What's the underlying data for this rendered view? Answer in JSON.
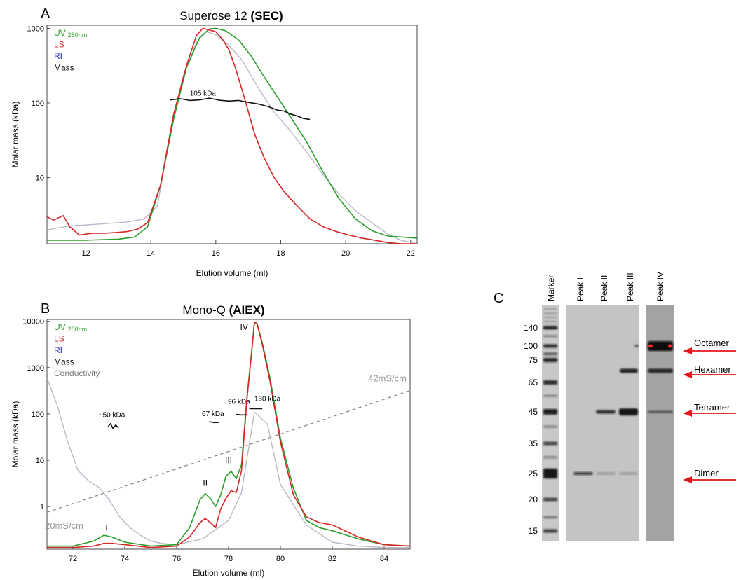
{
  "panels": {
    "a": {
      "letter": "A"
    },
    "b": {
      "letter": "B"
    },
    "c": {
      "letter": "C"
    }
  },
  "colors": {
    "uv": "#2ca02c",
    "ls": "#d62728",
    "ri": "#b9b9cc",
    "mass": "#111111",
    "conductivity": "#b9b9c8",
    "gradient": "#888888",
    "arrow": "#e8141a"
  },
  "chart_data": [
    {
      "id": "sec",
      "type": "line",
      "title_plain": "Superose 12",
      "title_bold": "(SEC)",
      "xlabel": "Elution volume (ml)",
      "ylabel": "Molar mass (kDa)",
      "xlim": [
        10.8,
        22.2
      ],
      "ylim": [
        1.3,
        1100
      ],
      "yscale": "log",
      "xticks": [
        "12",
        "14",
        "16",
        "18",
        "20",
        "22"
      ],
      "yticks": [
        "10",
        "100",
        "1000"
      ],
      "legend": [
        {
          "name": "UV",
          "sub": "280nm",
          "series": "uv"
        },
        {
          "name": "LS",
          "series": "ls"
        },
        {
          "name": "RI",
          "series": "ri"
        },
        {
          "name": "Mass",
          "series": "mass"
        }
      ],
      "annotations": [
        {
          "text": "105 kDa",
          "x": 15.6,
          "y": 125
        }
      ],
      "series": [
        {
          "key": "ri",
          "x": [
            10.8,
            11.5,
            12.5,
            13.3,
            13.8,
            14.2,
            14.6,
            15.0,
            15.4,
            15.7,
            16.0,
            16.4,
            16.8,
            17.3,
            17.8,
            18.3,
            18.8,
            19.3,
            19.8,
            20.3,
            20.8,
            21.3,
            21.7,
            22.2
          ],
          "y": [
            2.0,
            2.25,
            2.4,
            2.55,
            2.8,
            4.2,
            40,
            230,
            650,
            900,
            820,
            590,
            380,
            160,
            75,
            42,
            22,
            11,
            6,
            3.6,
            2.5,
            1.75,
            1.45,
            1.3
          ]
        },
        {
          "key": "uv",
          "x": [
            10.8,
            12.0,
            13.0,
            13.5,
            13.9,
            14.3,
            14.7,
            15.1,
            15.5,
            15.8,
            16.0,
            16.3,
            16.7,
            17.1,
            17.5,
            17.9,
            18.3,
            18.8,
            19.3,
            19.8,
            20.3,
            20.8,
            21.3,
            22.2
          ],
          "y": [
            1.45,
            1.45,
            1.5,
            1.6,
            2.2,
            8,
            60,
            300,
            750,
            980,
            1000,
            930,
            700,
            420,
            220,
            120,
            65,
            30,
            12,
            5.2,
            2.8,
            1.95,
            1.65,
            1.55
          ]
        },
        {
          "key": "ls",
          "x": [
            10.8,
            11.0,
            11.3,
            11.5,
            11.8,
            12.2,
            12.6,
            13.0,
            13.3,
            13.6,
            13.9,
            14.3,
            14.7,
            15.1,
            15.4,
            15.6,
            15.8,
            16.0,
            16.2,
            16.4,
            16.6,
            16.9,
            17.2,
            17.5,
            17.8,
            18.1,
            18.5,
            18.9,
            19.3,
            19.7,
            20.1,
            20.5,
            20.9,
            21.3,
            21.7,
            22.2
          ],
          "y": [
            3.0,
            2.7,
            3.1,
            2.2,
            1.7,
            1.8,
            1.8,
            1.85,
            1.9,
            2.05,
            2.5,
            8,
            70,
            320,
            800,
            1000,
            950,
            900,
            720,
            520,
            300,
            110,
            38,
            18,
            10,
            6.5,
            4.2,
            2.8,
            2.2,
            1.9,
            1.7,
            1.55,
            1.45,
            1.35,
            1.3,
            1.3
          ]
        },
        {
          "key": "mass",
          "x": [
            14.6,
            14.9,
            15.2,
            15.5,
            15.8,
            16.1,
            16.4,
            16.7,
            17.0,
            17.3,
            17.6,
            17.9,
            18.1,
            18.3,
            18.5,
            18.7,
            18.9
          ],
          "y": [
            110,
            114,
            108,
            110,
            116,
            109,
            106,
            108,
            102,
            97,
            90,
            80,
            78,
            71,
            67,
            62,
            60
          ]
        }
      ]
    },
    {
      "id": "aiex",
      "type": "line",
      "title_plain": "Mono-Q",
      "title_bold": "(AIEX)",
      "xlabel": "Elution volume (ml)",
      "ylabel": "Molar mass (kDa)",
      "xlim": [
        71.0,
        85.0
      ],
      "ylim": [
        0.12,
        11000
      ],
      "yscale": "log",
      "xticks": [
        "72",
        "74",
        "76",
        "78",
        "80",
        "82",
        "84"
      ],
      "yticks": [
        "1",
        "10",
        "100",
        "1000",
        "10000"
      ],
      "legend": [
        {
          "name": "UV",
          "sub": "280nm",
          "series": "uv"
        },
        {
          "name": "LS",
          "series": "ls"
        },
        {
          "name": "RI",
          "series": "ri"
        },
        {
          "name": "Mass",
          "series": "mass"
        },
        {
          "name": "Conductivity",
          "series": "conductivity"
        }
      ],
      "annotations": [
        {
          "text": "~50 kDa",
          "x": 73.5,
          "y": 85
        },
        {
          "text": "67 kDa",
          "x": 77.4,
          "y": 90
        },
        {
          "text": "96 kDa",
          "x": 78.4,
          "y": 165
        },
        {
          "text": "130 kDa",
          "x": 79.5,
          "y": 190
        },
        {
          "text": "I",
          "x": 73.3,
          "y": 0.3
        },
        {
          "text": "II",
          "x": 77.1,
          "y": 2.8
        },
        {
          "text": "III",
          "x": 78.0,
          "y": 8.5
        },
        {
          "text": "IV",
          "x": 78.6,
          "y": 6500
        }
      ],
      "gradient": {
        "start_label": "20mS/cm",
        "end_label": "42mS/cm",
        "x": [
          71.0,
          85.0
        ],
        "y": [
          0.75,
          320
        ]
      },
      "series": [
        {
          "key": "conductivity",
          "x": [
            71.0,
            71.4,
            71.8,
            72.2,
            72.6,
            73.0,
            73.4,
            73.8,
            74.2,
            74.6,
            75.0,
            75.4,
            76.0,
            77.0,
            78.0,
            78.5,
            79.0,
            79.5,
            80.0,
            81.0,
            82.0,
            83.0,
            84.0,
            85.0
          ],
          "y": [
            600,
            150,
            25,
            6,
            3.6,
            2.6,
            1.4,
            0.6,
            0.35,
            0.24,
            0.18,
            0.16,
            0.15,
            0.2,
            0.5,
            2,
            110,
            60,
            3,
            0.4,
            0.17,
            0.14,
            0.13,
            0.13
          ]
        },
        {
          "key": "uv",
          "x": [
            71.0,
            72.0,
            72.8,
            73.2,
            73.5,
            74.0,
            75.0,
            76.0,
            76.5,
            76.9,
            77.1,
            77.3,
            77.5,
            77.7,
            77.9,
            78.1,
            78.3,
            78.5,
            78.7,
            78.9,
            79.0,
            79.1,
            79.3,
            79.6,
            80.0,
            80.5,
            81.0,
            81.5,
            82.0,
            83.0,
            84.0,
            85.0
          ],
          "y": [
            0.14,
            0.14,
            0.18,
            0.24,
            0.22,
            0.17,
            0.14,
            0.15,
            0.35,
            1.4,
            1.9,
            1.5,
            1.0,
            1.8,
            4.5,
            5.8,
            4.0,
            8,
            200,
            2500,
            9800,
            9000,
            3500,
            600,
            30,
            2.5,
            0.5,
            0.35,
            0.3,
            0.2,
            0.15,
            0.14
          ]
        },
        {
          "key": "ls",
          "x": [
            71.0,
            72.0,
            72.8,
            73.2,
            73.5,
            74.0,
            75.0,
            76.0,
            76.5,
            76.9,
            77.1,
            77.3,
            77.5,
            77.7,
            77.9,
            78.1,
            78.3,
            78.5,
            78.7,
            78.9,
            79.0,
            79.1,
            79.3,
            79.6,
            80.0,
            80.5,
            81.0,
            81.5,
            82.0,
            83.0,
            84.0,
            85.0
          ],
          "y": [
            0.13,
            0.13,
            0.14,
            0.16,
            0.16,
            0.15,
            0.13,
            0.14,
            0.22,
            0.45,
            0.55,
            0.45,
            0.35,
            0.9,
            1.5,
            2.2,
            2.0,
            6,
            180,
            2400,
            9600,
            8800,
            3200,
            500,
            25,
            1.8,
            0.6,
            0.45,
            0.4,
            0.22,
            0.15,
            0.14
          ]
        },
        {
          "key": "mass",
          "segments": [
            {
              "x": [
                73.35,
                73.45,
                73.55,
                73.65,
                73.75
              ],
              "y": [
                52,
                62,
                48,
                58,
                50
              ]
            },
            {
              "x": [
                77.25,
                77.45,
                77.65
              ],
              "y": [
                68,
                65,
                66
              ]
            },
            {
              "x": [
                78.3,
                78.5,
                78.7
              ],
              "y": [
                98,
                95,
                96
              ]
            },
            {
              "x": [
                78.8,
                79.3
              ],
              "y": [
                130,
                130
              ]
            }
          ]
        }
      ]
    },
    {
      "id": "gel",
      "type": "table",
      "lane_labels": [
        "Marker",
        "Peak I",
        "Peak II",
        "Peak III",
        "Peak IV"
      ],
      "marker_kda": [
        "140",
        "100",
        "75",
        "65",
        "45",
        "35",
        "25",
        "20",
        "15"
      ],
      "band_labels": [
        "Octamer",
        "Hexamer",
        "Tetramer",
        "Dimer"
      ],
      "marker_y": [
        140,
        100,
        75,
        65,
        45,
        35,
        25,
        20,
        15
      ]
    }
  ]
}
